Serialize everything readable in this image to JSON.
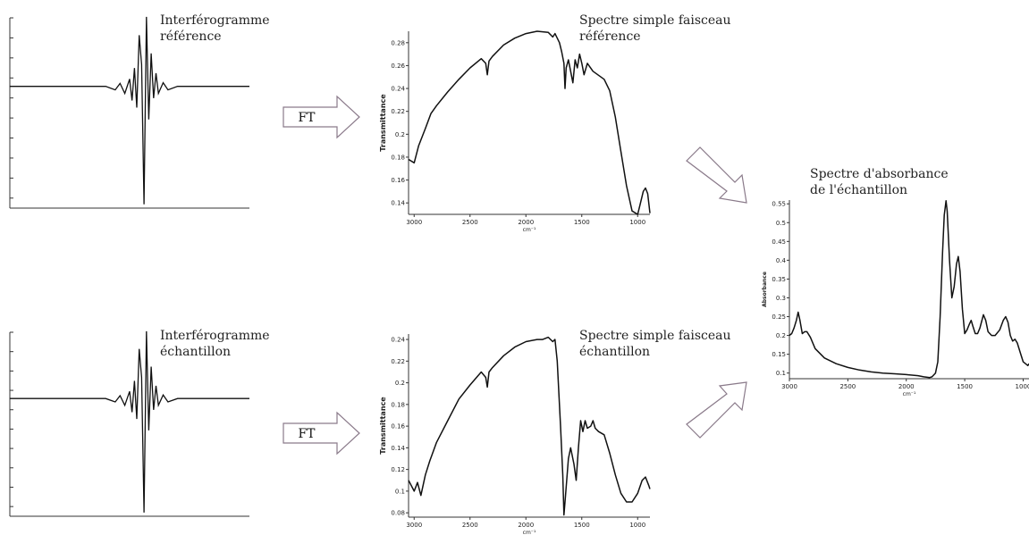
{
  "labels": {
    "interf_ref": [
      "Interférogramme",
      "référence"
    ],
    "interf_ech": [
      "Interférogramme",
      "échantillon"
    ],
    "spec_ref": [
      "Spectre simple faisceau",
      "référence"
    ],
    "spec_ech": [
      "Spectre simple faisceau",
      "échantillon"
    ],
    "absorbance": [
      "Spectre d'absorbance",
      "de l'échantillon"
    ],
    "ft_top": "FT",
    "ft_bottom": "FT"
  },
  "colors": {
    "line": "#111111",
    "arrow_stroke": "#8a7a8a"
  },
  "chart_data": [
    {
      "type": "line",
      "id": "interferogram_reference",
      "xlabel": "",
      "ylabel": "",
      "x_ticks": [],
      "y_ticks": [],
      "points": [
        [
          0,
          0
        ],
        [
          40,
          0
        ],
        [
          44,
          -0.03
        ],
        [
          46,
          0.04
        ],
        [
          48,
          -0.06
        ],
        [
          50,
          0.1
        ],
        [
          51,
          -0.12
        ],
        [
          52,
          0.25
        ],
        [
          53,
          -0.18
        ],
        [
          54,
          0.7
        ],
        [
          55,
          0.3
        ],
        [
          56,
          -1.0
        ],
        [
          57,
          0.95
        ],
        [
          58,
          -0.28
        ],
        [
          59,
          0.45
        ],
        [
          60,
          -0.1
        ],
        [
          61,
          0.18
        ],
        [
          62,
          -0.06
        ],
        [
          64,
          0.05
        ],
        [
          66,
          -0.03
        ],
        [
          70,
          0
        ],
        [
          100,
          0
        ]
      ]
    },
    {
      "type": "line",
      "id": "interferogram_sample",
      "xlabel": "",
      "ylabel": "",
      "x_ticks": [],
      "y_ticks": [],
      "points": [
        [
          0,
          0
        ],
        [
          40,
          0
        ],
        [
          44,
          -0.03
        ],
        [
          46,
          0.04
        ],
        [
          48,
          -0.06
        ],
        [
          50,
          0.1
        ],
        [
          51,
          -0.12
        ],
        [
          52,
          0.25
        ],
        [
          53,
          -0.18
        ],
        [
          54,
          0.7
        ],
        [
          55,
          0.3
        ],
        [
          56,
          -1.0
        ],
        [
          57,
          0.95
        ],
        [
          58,
          -0.28
        ],
        [
          59,
          0.45
        ],
        [
          60,
          -0.1
        ],
        [
          61,
          0.18
        ],
        [
          62,
          -0.06
        ],
        [
          64,
          0.05
        ],
        [
          66,
          -0.03
        ],
        [
          70,
          0
        ],
        [
          100,
          0
        ]
      ]
    },
    {
      "type": "line",
      "id": "single_beam_reference",
      "xlabel": "cm⁻¹",
      "ylabel": "Transmittance",
      "xlim": [
        3050,
        890
      ],
      "ylim": [
        0.13,
        0.29
      ],
      "x_ticks": [
        "3000",
        "2500",
        "2000",
        "1500",
        "1000"
      ],
      "y_ticks": [
        "0.14",
        "0.16",
        "0.18",
        "0.2",
        "0.22",
        "0.24",
        "0.26",
        "0.28"
      ],
      "points": [
        [
          3050,
          0.178
        ],
        [
          3000,
          0.175
        ],
        [
          2960,
          0.19
        ],
        [
          2900,
          0.205
        ],
        [
          2850,
          0.218
        ],
        [
          2800,
          0.225
        ],
        [
          2700,
          0.237
        ],
        [
          2600,
          0.248
        ],
        [
          2500,
          0.258
        ],
        [
          2400,
          0.266
        ],
        [
          2360,
          0.262
        ],
        [
          2345,
          0.252
        ],
        [
          2330,
          0.264
        ],
        [
          2300,
          0.268
        ],
        [
          2200,
          0.278
        ],
        [
          2100,
          0.284
        ],
        [
          2000,
          0.288
        ],
        [
          1900,
          0.29
        ],
        [
          1800,
          0.289
        ],
        [
          1760,
          0.285
        ],
        [
          1740,
          0.288
        ],
        [
          1700,
          0.28
        ],
        [
          1680,
          0.272
        ],
        [
          1660,
          0.262
        ],
        [
          1650,
          0.24
        ],
        [
          1640,
          0.258
        ],
        [
          1620,
          0.265
        ],
        [
          1600,
          0.255
        ],
        [
          1580,
          0.245
        ],
        [
          1560,
          0.265
        ],
        [
          1540,
          0.258
        ],
        [
          1520,
          0.27
        ],
        [
          1500,
          0.262
        ],
        [
          1480,
          0.252
        ],
        [
          1450,
          0.262
        ],
        [
          1400,
          0.255
        ],
        [
          1300,
          0.248
        ],
        [
          1250,
          0.238
        ],
        [
          1200,
          0.215
        ],
        [
          1150,
          0.185
        ],
        [
          1100,
          0.155
        ],
        [
          1050,
          0.133
        ],
        [
          1000,
          0.13
        ],
        [
          980,
          0.138
        ],
        [
          950,
          0.15
        ],
        [
          930,
          0.153
        ],
        [
          910,
          0.148
        ],
        [
          890,
          0.131
        ]
      ]
    },
    {
      "type": "line",
      "id": "single_beam_sample",
      "xlabel": "cm⁻¹",
      "ylabel": "Transmittance",
      "xlim": [
        3050,
        890
      ],
      "ylim": [
        0.076,
        0.245
      ],
      "x_ticks": [
        "3000",
        "2500",
        "2000",
        "1500",
        "1000"
      ],
      "y_ticks": [
        "0.08",
        "0.1",
        "0.12",
        "0.14",
        "0.16",
        "0.18",
        "0.2",
        "0.22",
        "0.24"
      ],
      "points": [
        [
          3050,
          0.11
        ],
        [
          3000,
          0.1
        ],
        [
          2970,
          0.108
        ],
        [
          2940,
          0.096
        ],
        [
          2900,
          0.115
        ],
        [
          2860,
          0.128
        ],
        [
          2800,
          0.145
        ],
        [
          2700,
          0.165
        ],
        [
          2600,
          0.185
        ],
        [
          2500,
          0.198
        ],
        [
          2400,
          0.21
        ],
        [
          2360,
          0.205
        ],
        [
          2345,
          0.196
        ],
        [
          2330,
          0.21
        ],
        [
          2300,
          0.214
        ],
        [
          2200,
          0.225
        ],
        [
          2100,
          0.233
        ],
        [
          2000,
          0.238
        ],
        [
          1900,
          0.24
        ],
        [
          1850,
          0.24
        ],
        [
          1800,
          0.242
        ],
        [
          1760,
          0.238
        ],
        [
          1740,
          0.24
        ],
        [
          1720,
          0.22
        ],
        [
          1690,
          0.16
        ],
        [
          1670,
          0.115
        ],
        [
          1660,
          0.078
        ],
        [
          1650,
          0.09
        ],
        [
          1620,
          0.13
        ],
        [
          1600,
          0.14
        ],
        [
          1570,
          0.125
        ],
        [
          1550,
          0.11
        ],
        [
          1530,
          0.14
        ],
        [
          1510,
          0.165
        ],
        [
          1490,
          0.155
        ],
        [
          1470,
          0.165
        ],
        [
          1450,
          0.158
        ],
        [
          1420,
          0.16
        ],
        [
          1400,
          0.165
        ],
        [
          1380,
          0.158
        ],
        [
          1350,
          0.155
        ],
        [
          1300,
          0.152
        ],
        [
          1250,
          0.135
        ],
        [
          1200,
          0.115
        ],
        [
          1150,
          0.098
        ],
        [
          1100,
          0.09
        ],
        [
          1050,
          0.09
        ],
        [
          1000,
          0.098
        ],
        [
          960,
          0.11
        ],
        [
          930,
          0.113
        ],
        [
          900,
          0.105
        ],
        [
          890,
          0.102
        ]
      ]
    },
    {
      "type": "line",
      "id": "absorbance_sample",
      "xlabel": "cm⁻¹",
      "ylabel": "Absorbance",
      "xlim": [
        3000,
        950
      ],
      "ylim": [
        0.085,
        0.56
      ],
      "x_ticks": [
        "3000",
        "2500",
        "2000",
        "1500",
        "1000"
      ],
      "y_ticks": [
        "0.1",
        "0.15",
        "0.2",
        "0.25",
        "0.3",
        "0.35",
        "0.4",
        "0.45",
        "0.5",
        "0.55"
      ],
      "points": [
        [
          3000,
          0.2
        ],
        [
          2980,
          0.205
        ],
        [
          2960,
          0.22
        ],
        [
          2940,
          0.24
        ],
        [
          2925,
          0.262
        ],
        [
          2910,
          0.24
        ],
        [
          2890,
          0.205
        ],
        [
          2870,
          0.21
        ],
        [
          2850,
          0.21
        ],
        [
          2820,
          0.195
        ],
        [
          2780,
          0.165
        ],
        [
          2700,
          0.14
        ],
        [
          2600,
          0.125
        ],
        [
          2500,
          0.115
        ],
        [
          2400,
          0.108
        ],
        [
          2300,
          0.103
        ],
        [
          2200,
          0.1
        ],
        [
          2100,
          0.098
        ],
        [
          2000,
          0.096
        ],
        [
          1900,
          0.093
        ],
        [
          1850,
          0.09
        ],
        [
          1800,
          0.088
        ],
        [
          1780,
          0.09
        ],
        [
          1750,
          0.1
        ],
        [
          1730,
          0.13
        ],
        [
          1710,
          0.25
        ],
        [
          1690,
          0.42
        ],
        [
          1675,
          0.52
        ],
        [
          1660,
          0.558
        ],
        [
          1650,
          0.53
        ],
        [
          1630,
          0.4
        ],
        [
          1610,
          0.3
        ],
        [
          1590,
          0.33
        ],
        [
          1570,
          0.39
        ],
        [
          1555,
          0.41
        ],
        [
          1540,
          0.37
        ],
        [
          1520,
          0.27
        ],
        [
          1500,
          0.205
        ],
        [
          1480,
          0.215
        ],
        [
          1460,
          0.23
        ],
        [
          1445,
          0.24
        ],
        [
          1430,
          0.225
        ],
        [
          1410,
          0.205
        ],
        [
          1390,
          0.205
        ],
        [
          1370,
          0.22
        ],
        [
          1340,
          0.255
        ],
        [
          1320,
          0.24
        ],
        [
          1300,
          0.21
        ],
        [
          1270,
          0.2
        ],
        [
          1240,
          0.2
        ],
        [
          1200,
          0.215
        ],
        [
          1170,
          0.24
        ],
        [
          1150,
          0.25
        ],
        [
          1130,
          0.235
        ],
        [
          1110,
          0.2
        ],
        [
          1090,
          0.185
        ],
        [
          1070,
          0.19
        ],
        [
          1050,
          0.18
        ],
        [
          1020,
          0.15
        ],
        [
          1000,
          0.13
        ],
        [
          980,
          0.125
        ],
        [
          960,
          0.12
        ],
        [
          950,
          0.125
        ]
      ]
    }
  ]
}
